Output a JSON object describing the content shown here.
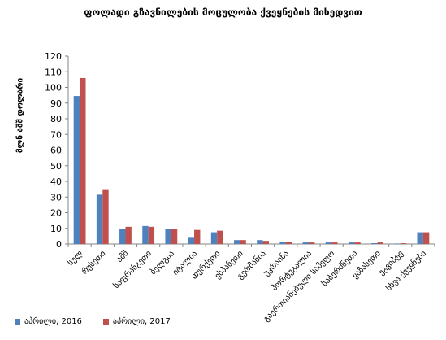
{
  "chart_data": {
    "type": "bar",
    "title": "ფოლადი გზავნილების მოცულობა ქვეყნების მიხედვით",
    "ylabel": "მლნ აშშ დოლარი",
    "xlabel": "",
    "ylim": [
      0,
      120
    ],
    "yticks": [
      0,
      10,
      20,
      30,
      40,
      50,
      60,
      70,
      80,
      90,
      100,
      110,
      120
    ],
    "categories": [
      "სულ",
      "რუსეთი",
      "აშშ",
      "საფრანგეთი",
      "ბელგია",
      "იტალია",
      "თურქეთი",
      "ესპანეთი",
      "გერმანია",
      "უკრაინა",
      "პორტუგალია",
      "გაერთიანებული სამეფო",
      "საბერძნეთი",
      "ყაზახეთი",
      "ეგვიპტე",
      "სხვა ქვეყნები"
    ],
    "series": [
      {
        "name": "აპრილი, 2016",
        "color": "#4f81bd",
        "values": [
          94.5,
          31.5,
          9.5,
          11.5,
          9.5,
          4.5,
          7.5,
          2.5,
          2.5,
          1.5,
          1.0,
          1.0,
          1.0,
          0.5,
          0.3,
          7.5
        ]
      },
      {
        "name": "აპრილი, 2017",
        "color": "#c0504d",
        "values": [
          106.0,
          35.0,
          11.0,
          11.0,
          9.5,
          9.0,
          8.5,
          2.5,
          2.0,
          1.5,
          1.0,
          1.0,
          1.0,
          1.0,
          0.5,
          7.5
        ]
      }
    ],
    "grid": false,
    "legend_position": "bottom-left"
  }
}
